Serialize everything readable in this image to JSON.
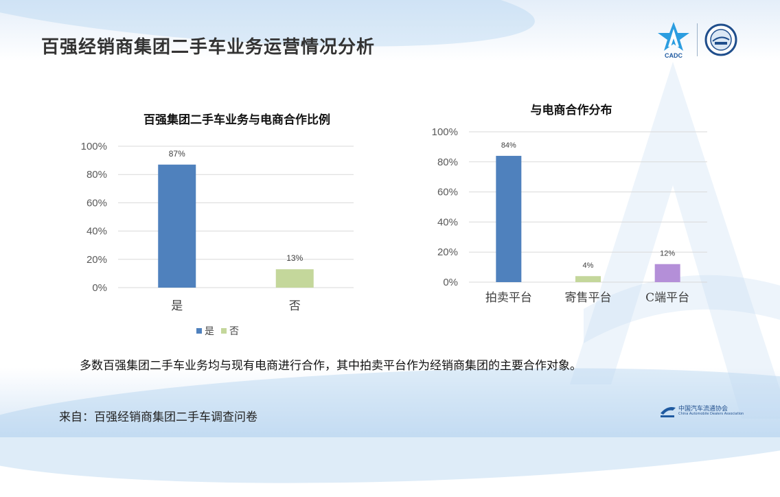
{
  "page": {
    "title": "百强经销商集团二手车业务运营情况分析",
    "summary": "多数百强集团二手车业务均与现有电商进行合作，其中拍卖平台作为经销商集团的主要合作对象。",
    "source": "来自：百强经销商集团二手车调查问卷",
    "logo_text": "CADC",
    "footer_logo_text": "中国汽车流通协会",
    "footer_logo_subtext": "China Automobile Dealers Association"
  },
  "chart_data": [
    {
      "type": "bar",
      "title": "百强集团二手车业务与电商合作比例",
      "categories": [
        "是",
        "否"
      ],
      "values": [
        87,
        13
      ],
      "value_labels": [
        "87%",
        "13%"
      ],
      "colors": [
        "#4f81bd",
        "#c4d79b"
      ],
      "ylim": [
        0,
        100
      ],
      "yticks": [
        "0%",
        "20%",
        "40%",
        "60%",
        "80%",
        "100%"
      ],
      "grid": true,
      "legend": [
        "是",
        "否"
      ],
      "legend_position": "bottom"
    },
    {
      "type": "bar",
      "title": "与电商合作分布",
      "categories": [
        "拍卖平台",
        "寄售平台",
        "C端平台"
      ],
      "values": [
        84,
        4,
        12
      ],
      "value_labels": [
        "84%",
        "4%",
        "12%"
      ],
      "colors": [
        "#4f81bd",
        "#c4d79b",
        "#b48fd8"
      ],
      "ylim": [
        0,
        100
      ],
      "yticks": [
        "0%",
        "20%",
        "40%",
        "60%",
        "80%",
        "100%"
      ],
      "grid": true
    }
  ]
}
